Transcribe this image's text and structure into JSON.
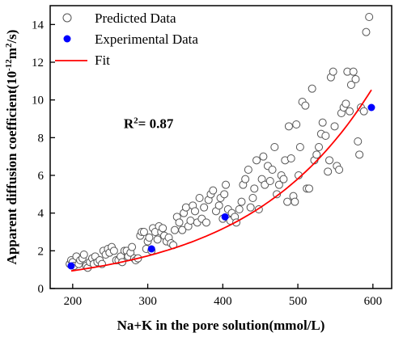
{
  "chart_data": {
    "type": "scatter",
    "xlabel": "Na+K in the pore solution(mmol/L)",
    "ylabel": {
      "prefix": "Apparent diffusion coefficient(10",
      "exp1": "-12",
      "mid": "m",
      "exp2": "2",
      "suffix": "/s)"
    },
    "xlim": [
      170,
      625
    ],
    "ylim": [
      0,
      15
    ],
    "xticks": [
      200,
      300,
      400,
      500,
      600
    ],
    "yticks": [
      0,
      2,
      4,
      6,
      8,
      10,
      12,
      14
    ],
    "grid": false,
    "legend_position": "top-left",
    "annotation": {
      "prefix": "R",
      "sup": "2",
      "suffix": "= 0.87",
      "x": 268,
      "y": 8.5
    },
    "colors": {
      "predicted": "#555555",
      "experimental": "#0000ff",
      "fit": "#ff0000"
    },
    "series": [
      {
        "name": "Predicted Data",
        "marker": "open-circle",
        "points": [
          [
            196,
            1.3
          ],
          [
            198,
            1.5
          ],
          [
            200,
            1.4
          ],
          [
            202,
            1.2
          ],
          [
            205,
            1.7
          ],
          [
            208,
            1.3
          ],
          [
            210,
            1.5
          ],
          [
            213,
            1.6
          ],
          [
            215,
            1.8
          ],
          [
            218,
            1.2
          ],
          [
            220,
            1.1
          ],
          [
            223,
            1.4
          ],
          [
            226,
            1.6
          ],
          [
            228,
            1.3
          ],
          [
            230,
            1.7
          ],
          [
            233,
            1.4
          ],
          [
            236,
            1.5
          ],
          [
            239,
            1.3
          ],
          [
            241,
            2.0
          ],
          [
            244,
            1.8
          ],
          [
            247,
            2.1
          ],
          [
            249,
            1.9
          ],
          [
            252,
            2.2
          ],
          [
            255,
            2.0
          ],
          [
            258,
            1.5
          ],
          [
            261,
            1.5
          ],
          [
            264,
            1.7
          ],
          [
            266,
            1.4
          ],
          [
            269,
            2.0
          ],
          [
            272,
            2.0
          ],
          [
            274,
            1.7
          ],
          [
            277,
            1.9
          ],
          [
            279,
            2.2
          ],
          [
            282,
            1.6
          ],
          [
            284,
            1.5
          ],
          [
            287,
            1.6
          ],
          [
            290,
            2.8
          ],
          [
            292,
            3.0
          ],
          [
            295,
            3.0
          ],
          [
            298,
            2.1
          ],
          [
            300,
            2.5
          ],
          [
            302,
            2.7
          ],
          [
            305,
            2.0
          ],
          [
            307,
            3.2
          ],
          [
            310,
            3.0
          ],
          [
            313,
            2.6
          ],
          [
            315,
            3.3
          ],
          [
            318,
            3.0
          ],
          [
            320,
            3.2
          ],
          [
            322,
            2.8
          ],
          [
            325,
            2.5
          ],
          [
            328,
            2.7
          ],
          [
            331,
            2.4
          ],
          [
            334,
            2.3
          ],
          [
            336,
            3.1
          ],
          [
            339,
            3.8
          ],
          [
            342,
            3.5
          ],
          [
            346,
            3.1
          ],
          [
            348,
            4.0
          ],
          [
            351,
            4.3
          ],
          [
            354,
            3.3
          ],
          [
            357,
            3.6
          ],
          [
            360,
            4.4
          ],
          [
            363,
            4.1
          ],
          [
            366,
            3.5
          ],
          [
            369,
            4.8
          ],
          [
            372,
            3.7
          ],
          [
            375,
            4.3
          ],
          [
            378,
            3.5
          ],
          [
            381,
            4.7
          ],
          [
            384,
            5.0
          ],
          [
            387,
            5.2
          ],
          [
            391,
            4.1
          ],
          [
            395,
            4.4
          ],
          [
            397,
            4.8
          ],
          [
            400,
            3.7
          ],
          [
            402,
            5.0
          ],
          [
            404,
            5.5
          ],
          [
            407,
            4.2
          ],
          [
            410,
            3.6
          ],
          [
            412,
            4.0
          ],
          [
            416,
            3.8
          ],
          [
            418,
            3.5
          ],
          [
            422,
            4.2
          ],
          [
            425,
            4.6
          ],
          [
            427,
            5.5
          ],
          [
            430,
            5.8
          ],
          [
            434,
            6.3
          ],
          [
            437,
            4.3
          ],
          [
            440,
            4.8
          ],
          [
            442,
            5.3
          ],
          [
            445,
            6.8
          ],
          [
            448,
            4.2
          ],
          [
            452,
            5.8
          ],
          [
            454,
            7.0
          ],
          [
            456,
            5.5
          ],
          [
            460,
            6.5
          ],
          [
            463,
            5.7
          ],
          [
            466,
            6.3
          ],
          [
            469,
            7.5
          ],
          [
            472,
            5.0
          ],
          [
            475,
            5.5
          ],
          [
            478,
            6.0
          ],
          [
            481,
            5.8
          ],
          [
            483,
            6.8
          ],
          [
            486,
            4.6
          ],
          [
            488,
            8.6
          ],
          [
            491,
            6.9
          ],
          [
            494,
            4.9
          ],
          [
            496,
            4.6
          ],
          [
            498,
            8.7
          ],
          [
            501,
            6.0
          ],
          [
            503,
            7.5
          ],
          [
            506,
            9.9
          ],
          [
            510,
            9.7
          ],
          [
            512,
            5.3
          ],
          [
            515,
            5.3
          ],
          [
            519,
            10.6
          ],
          [
            522,
            6.8
          ],
          [
            525,
            7.1
          ],
          [
            528,
            7.5
          ],
          [
            531,
            8.2
          ],
          [
            533,
            8.8
          ],
          [
            537,
            8.1
          ],
          [
            540,
            6.2
          ],
          [
            542,
            6.8
          ],
          [
            544,
            11.2
          ],
          [
            547,
            11.5
          ],
          [
            549,
            8.6
          ],
          [
            552,
            6.5
          ],
          [
            555,
            6.3
          ],
          [
            558,
            9.3
          ],
          [
            561,
            9.6
          ],
          [
            564,
            9.8
          ],
          [
            566,
            11.5
          ],
          [
            569,
            9.4
          ],
          [
            571,
            10.8
          ],
          [
            574,
            11.5
          ],
          [
            577,
            11.1
          ],
          [
            580,
            7.8
          ],
          [
            582,
            7.1
          ],
          [
            584,
            9.6
          ],
          [
            588,
            9.4
          ],
          [
            591,
            13.6
          ],
          [
            595,
            14.4
          ]
        ]
      },
      {
        "name": "Experimental Data",
        "marker": "filled-circle",
        "points": [
          [
            198,
            1.2
          ],
          [
            305,
            2.1
          ],
          [
            403,
            3.8
          ],
          [
            598,
            9.6
          ]
        ]
      },
      {
        "name": "Fit",
        "marker": "line",
        "curve": {
          "form": "exponential",
          "a": 0.2814,
          "b": 0.006058,
          "x_start": 198,
          "x_end": 598
        }
      }
    ]
  }
}
